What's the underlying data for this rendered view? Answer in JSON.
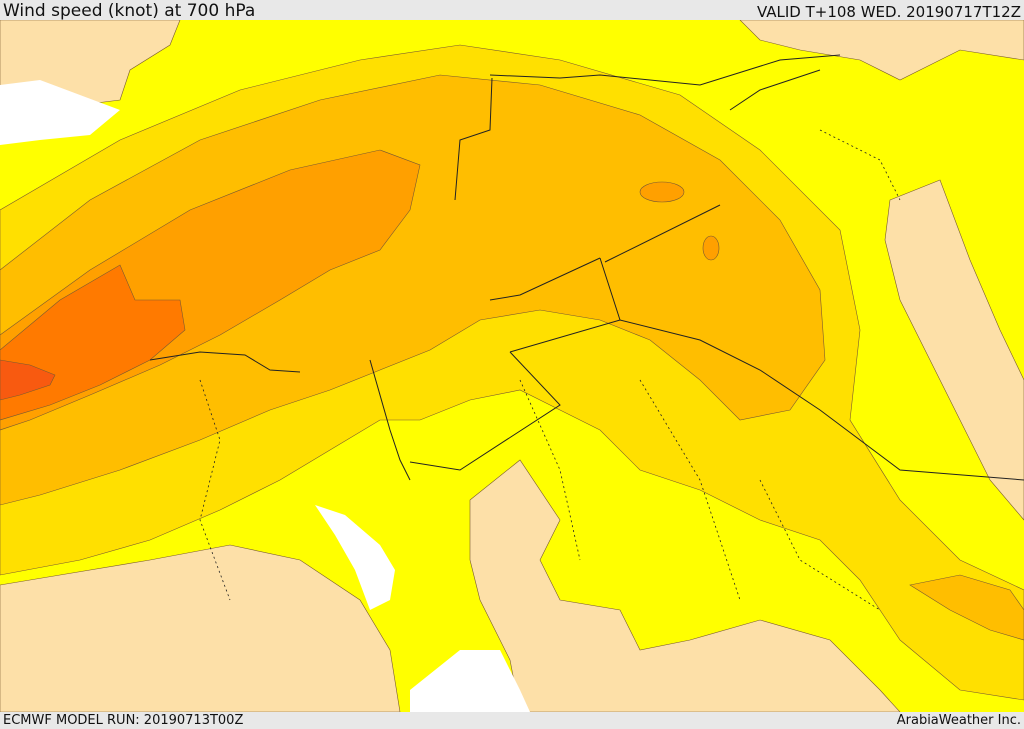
{
  "header": {
    "title": "Wind speed (knot) at 700 hPa",
    "valid": "VALID T+108 WED. 20190717T12Z"
  },
  "footer": {
    "model_run": "ECMWF MODEL RUN: 20190713T00Z",
    "brand": "ArabiaWeather Inc."
  },
  "map": {
    "field": "wind speed at 700 hPa",
    "fill_colors": {
      "land_outside_domain": "#ffffff",
      "band_1": "#fde0a8",
      "band_2": "#ffff00",
      "band_3": "#ffe000",
      "band_4": "#ffbe00",
      "band_5": "#ffa000",
      "band_6": "#ff7a00",
      "band_7": "#f85a10"
    },
    "contour_color": "#7a5a30",
    "border_color": "#222222"
  }
}
